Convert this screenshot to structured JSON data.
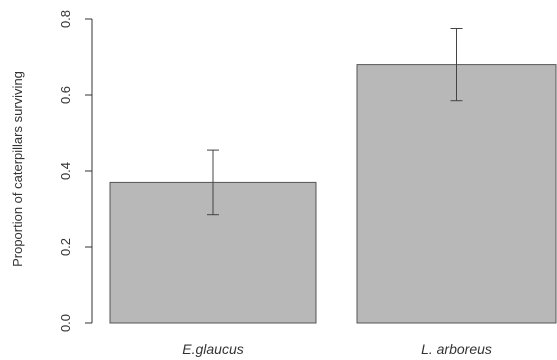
{
  "chart_data": {
    "type": "bar",
    "categories": [
      "E.glaucus",
      "L. arboreus"
    ],
    "values": [
      0.37,
      0.68
    ],
    "error_low": [
      0.285,
      0.585
    ],
    "error_high": [
      0.455,
      0.775
    ],
    "title": "",
    "xlabel": "",
    "ylabel": "Proportion of caterpillars surviving",
    "ylim": [
      0,
      0.8
    ],
    "yticks": [
      "0.0",
      "0.2",
      "0.4",
      "0.6",
      "0.8"
    ],
    "grid": false,
    "colors": {
      "bar_fill": "#b8b8b8",
      "bar_stroke": "#555555",
      "axis": "#333333"
    }
  }
}
